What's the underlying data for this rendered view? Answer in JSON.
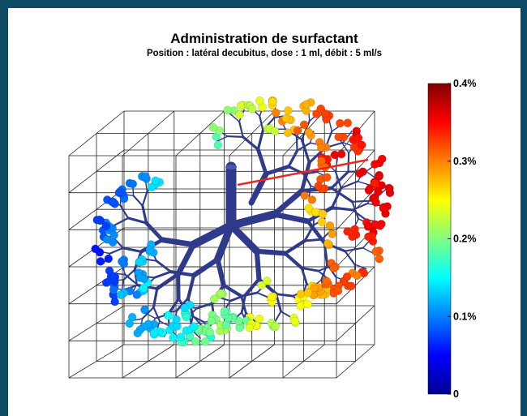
{
  "chart_data": {
    "type": "scatter",
    "title": "Administration de surfactant",
    "subtitle": "Position : latéral decubitus, dose : 1 ml, débit : 5 ml/s",
    "colorbar": {
      "min": 0,
      "max": 0.4,
      "ticks": [
        {
          "value": 0,
          "label": "0"
        },
        {
          "value": 0.1,
          "label": "0.1%"
        },
        {
          "value": 0.2,
          "label": "0.2%"
        },
        {
          "value": 0.3,
          "label": "0.3%"
        },
        {
          "value": 0.4,
          "label": "0.4%"
        }
      ],
      "colormap": "jet"
    },
    "grid": true,
    "tree_color": "#2f3a8a",
    "instrument_color": "#e8281e"
  }
}
